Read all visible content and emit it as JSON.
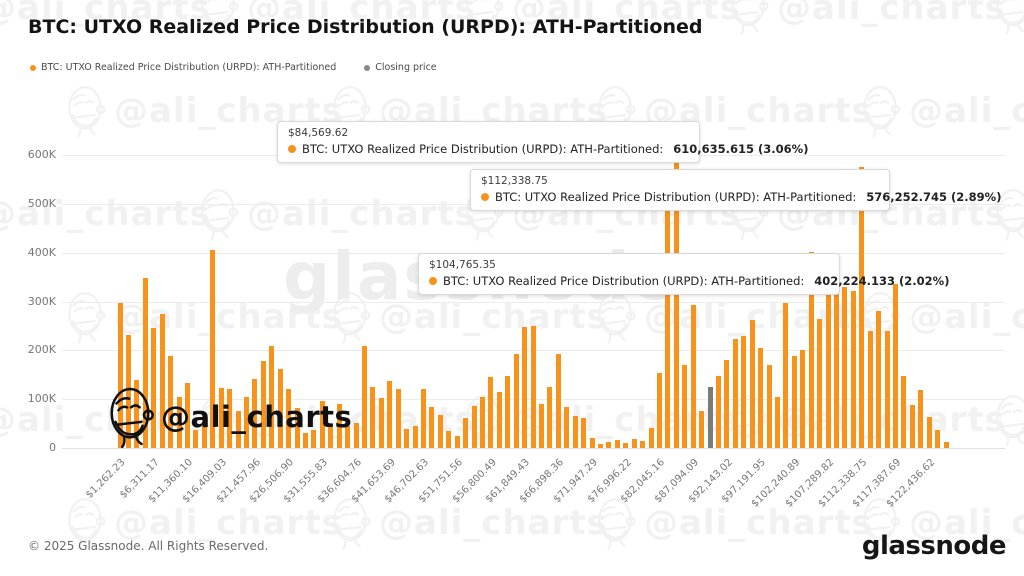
{
  "title": "BTC: UTXO Realized Price Distribution (URPD): ATH-Partitioned",
  "legend": {
    "items": [
      {
        "label": "BTC: UTXO Realized Price Distribution (URPD): ATH-Partitioned",
        "color": "#f7931a"
      },
      {
        "label": "Closing price",
        "color": "#8a8a8a"
      }
    ]
  },
  "tooltips": [
    {
      "price": "$84,569.62",
      "series": "BTC: UTXO Realized Price Distribution (URPD): ATH-Partitioned:",
      "value": "610,635.615 (3.06%)"
    },
    {
      "price": "$112,338.75",
      "series": "BTC: UTXO Realized Price Distribution (URPD): ATH-Partitioned:",
      "value": "576,252.745 (2.89%)"
    },
    {
      "price": "$104,765.35",
      "series": "BTC: UTXO Realized Price Distribution (URPD): ATH-Partitioned:",
      "value": "402,224.133 (2.02%)"
    }
  ],
  "watermark": {
    "tile_text": "@ali_charts",
    "big_text": "glassnode",
    "signature_text": "@ali_charts"
  },
  "footer": {
    "copyright": "© 2025 Glassnode. All Rights Reserved.",
    "logo": "glassnode"
  },
  "chart_data": {
    "type": "bar",
    "title": "BTC: UTXO Realized Price Distribution (URPD): ATH-Partitioned",
    "series_name": "BTC: UTXO Realized Price Distribution (URPD): ATH-Partitioned",
    "ylabel": "",
    "xlabel": "",
    "grid": true,
    "legend_position": "top-left",
    "bar_color": "#f7931a",
    "closing_price_color": "#7b7b7b",
    "closing_price_bar_index": 70,
    "bin_width_usd": 1262.23,
    "x_start_usd": 1262.23,
    "x_tick_every": 4,
    "ylim": [
      0,
      660000
    ],
    "y_ticks": [
      "0",
      "100K",
      "200K",
      "300K",
      "400K",
      "500K",
      "600K"
    ],
    "y_tick_values": [
      0,
      100000,
      200000,
      300000,
      400000,
      500000,
      600000
    ],
    "x_tick_labels": [
      "$1,262.23",
      "$6,311.17",
      "$11,360.10",
      "$16,409.03",
      "$21,457.96",
      "$26,506.90",
      "$31,555.83",
      "$36,604.76",
      "$41,653.69",
      "$46,702.63",
      "$51,751.56",
      "$56,800.49",
      "$61,849.43",
      "$66,898.36",
      "$71,947.29",
      "$76,996.22",
      "$82,045.16",
      "$87,094.09",
      "$92,143.02",
      "$97,191.95",
      "$102,240.89",
      "$107,289.82",
      "$112,338.75",
      "$117,387.69",
      "$122,436.62"
    ],
    "values": [
      298000,
      232000,
      140000,
      348000,
      245000,
      274000,
      188000,
      104000,
      133000,
      37000,
      68000,
      405000,
      123000,
      120000,
      75000,
      104000,
      142000,
      178000,
      208000,
      162000,
      120000,
      82000,
      30000,
      37000,
      96000,
      44000,
      90000,
      45000,
      52000,
      210000,
      124000,
      103000,
      137000,
      121000,
      39000,
      45000,
      120000,
      85000,
      68000,
      35000,
      25000,
      61000,
      87000,
      105000,
      145000,
      114000,
      147000,
      192000,
      248000,
      250000,
      91000,
      126000,
      192000,
      85000,
      65000,
      61000,
      21000,
      8000,
      12000,
      16000,
      10000,
      18000,
      14000,
      42000,
      153000,
      495000,
      610635.615,
      170000,
      294000,
      75000,
      126000,
      147000,
      181000,
      223000,
      230000,
      263000,
      205000,
      170000,
      104000,
      297000,
      189000,
      201000,
      402224.133,
      264000,
      340000,
      369000,
      329000,
      321000,
      576252.745,
      239000,
      280000,
      239000,
      337000,
      147000,
      88000,
      119000,
      64000,
      37000,
      13000
    ],
    "highlighted_points": [
      {
        "price": "$84,569.62",
        "value": 610635.615,
        "pct": "3.06%"
      },
      {
        "price": "$112,338.75",
        "value": 576252.745,
        "pct": "2.89%"
      },
      {
        "price": "$104,765.35",
        "value": 402224.133,
        "pct": "2.02%"
      }
    ]
  }
}
